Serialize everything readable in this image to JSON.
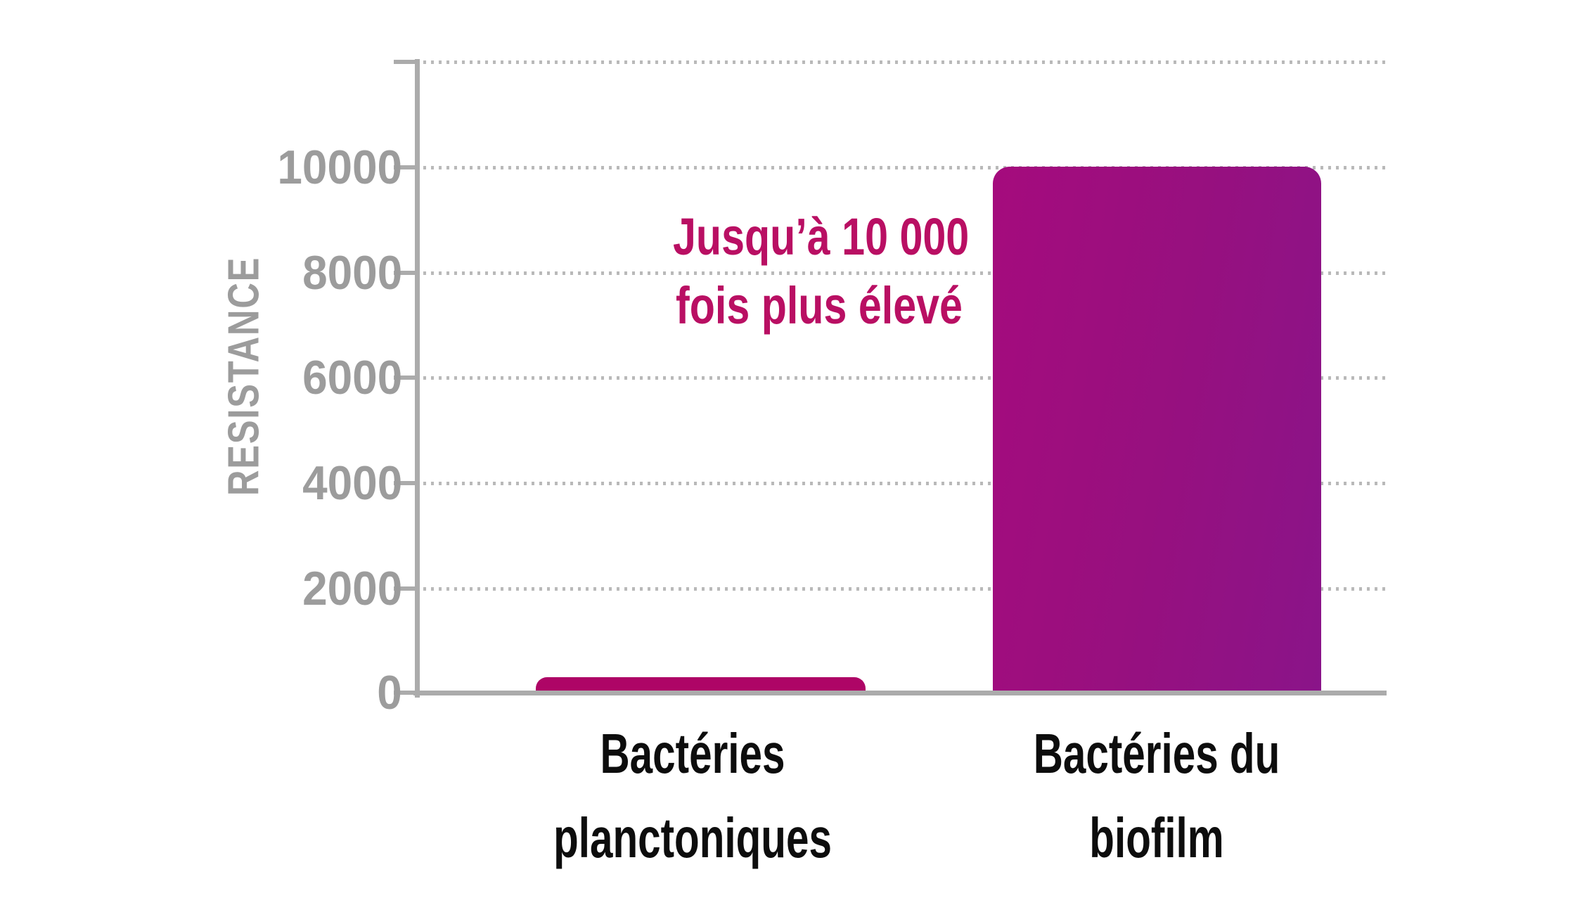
{
  "chart_data": {
    "type": "bar",
    "title": "",
    "categories": [
      "Bactéries planctoniques",
      "Bactéries du biofilm"
    ],
    "values": [
      300,
      10000
    ],
    "xlabel": "",
    "ylabel": "RESISTANCE",
    "ylim": [
      0,
      12000
    ],
    "yticks": [
      0,
      2000,
      4000,
      6000,
      8000,
      10000
    ],
    "grid": "horizontal dotted gridlines at 2000 intervals up to 12000, legend off",
    "annotation": "Jusqu’à 10 000 fois plus élevé"
  },
  "y_axis": {
    "label": "RESISTANCE",
    "tick_labels": [
      "10000",
      "8000",
      "6000",
      "4000",
      "2000",
      "0"
    ]
  },
  "x_axis": {
    "categories": [
      {
        "line1": "Bactéries",
        "line2": "planctoniques"
      },
      {
        "line1": "Bactéries du",
        "line2": "biofilm"
      }
    ]
  },
  "annotation": {
    "line1": "Jusqu’à 10 000",
    "line2": "fois plus élevé"
  },
  "colors": {
    "bar_small": "#ae0566",
    "bar_large_left": "#a50b7d",
    "bar_large_right": "#8a1489",
    "annotation_pink": "#b90f63",
    "axis_gray": "#ababab",
    "label_gray": "#9c9c9c",
    "grid_dot_gray": "#b9b9b9",
    "text_black": "#0d0d0d"
  }
}
